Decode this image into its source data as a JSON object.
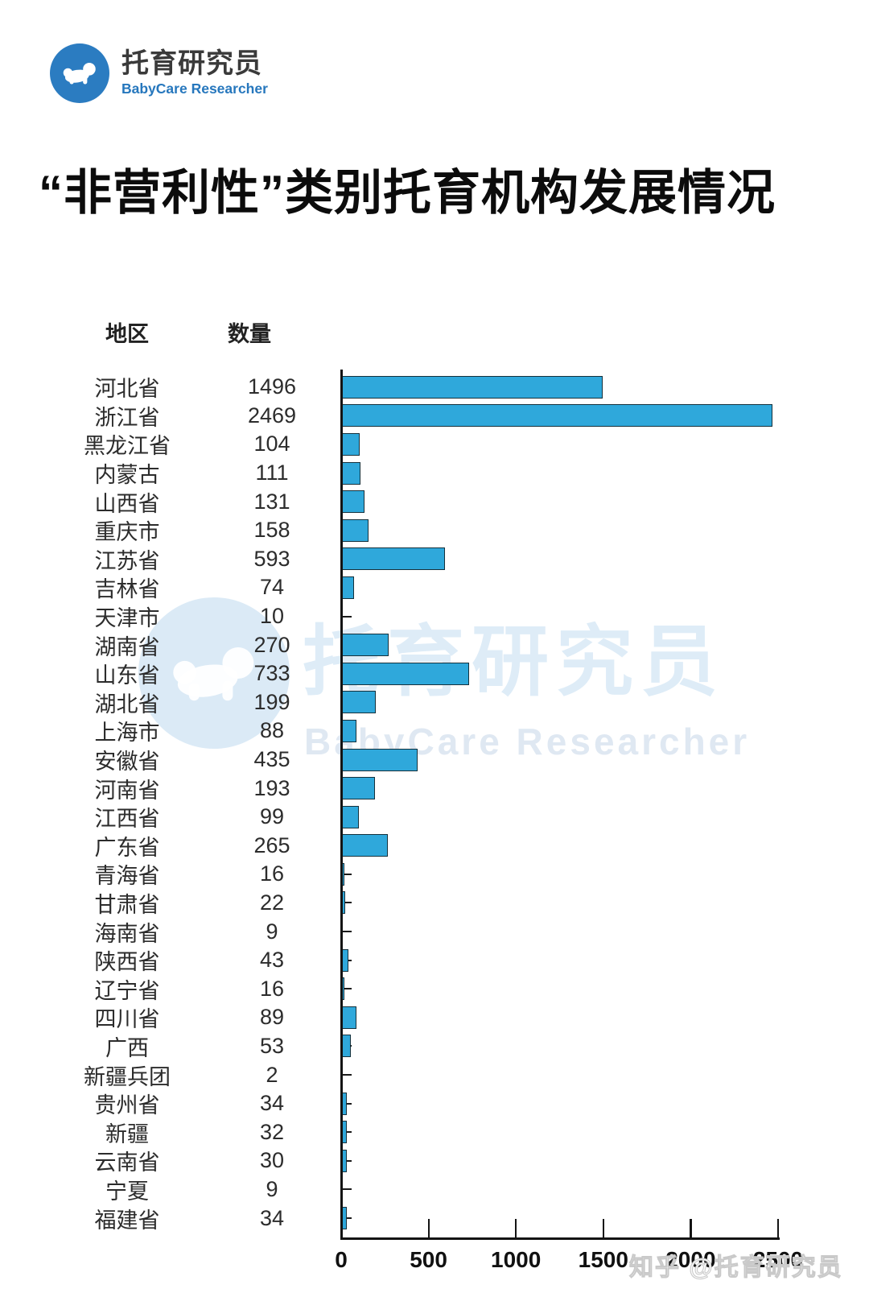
{
  "logo": {
    "title": "托育研究员",
    "subtitle": "BabyCare Researcher"
  },
  "page_title": "“非营利性”类别托育机构发展情况",
  "table_headers": {
    "region": "地区",
    "count": "数量"
  },
  "chart_data": {
    "type": "bar",
    "orientation": "horizontal",
    "title": "“非营利性”类别托育机构发展情况",
    "categories": [
      "河北省",
      "浙江省",
      "黑龙江省",
      "内蒙古",
      "山西省",
      "重庆市",
      "江苏省",
      "吉林省",
      "天津市",
      "湖南省",
      "山东省",
      "湖北省",
      "上海市",
      "安徽省",
      "河南省",
      "江西省",
      "广东省",
      "青海省",
      "甘肃省",
      "海南省",
      "陕西省",
      "辽宁省",
      "四川省",
      "广西",
      "新疆兵团",
      "贵州省",
      "新疆",
      "云南省",
      "宁夏",
      "福建省"
    ],
    "values": [
      1496,
      2469,
      104,
      111,
      131,
      158,
      593,
      74,
      10,
      270,
      733,
      199,
      88,
      435,
      193,
      99,
      265,
      16,
      22,
      9,
      43,
      16,
      89,
      53,
      2,
      34,
      32,
      30,
      9,
      34
    ],
    "xlabel": "",
    "ylabel": "",
    "xlim": [
      0,
      2500
    ],
    "xticks": [
      0,
      500,
      1000,
      1500,
      2000,
      2500
    ],
    "grid": false,
    "legend": "none",
    "bar_color": "#2fa8db"
  },
  "watermarks": {
    "center_title": "托育研究员",
    "center_subtitle": "BabyCare Researcher",
    "corner": "知乎 @托育研究员"
  },
  "colors": {
    "bar": "#2fa8db",
    "logo_blue": "#2b7cc1",
    "axis": "#141414"
  }
}
